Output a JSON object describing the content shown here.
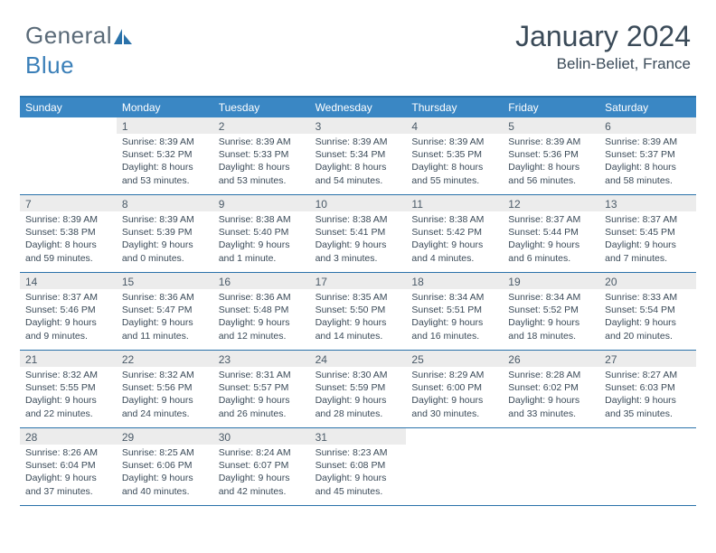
{
  "brand": {
    "part1": "General",
    "part2": "Blue"
  },
  "header": {
    "title": "January 2024",
    "location": "Belin-Beliet, France"
  },
  "colors": {
    "header_bar": "#3a87c4",
    "border": "#2a72aa",
    "daynum_bg": "#ececec",
    "text": "#3a4a58",
    "logo_gray": "#5a6a78",
    "logo_blue": "#3a7fb8",
    "page_bg": "#ffffff"
  },
  "dayLabels": [
    "Sunday",
    "Monday",
    "Tuesday",
    "Wednesday",
    "Thursday",
    "Friday",
    "Saturday"
  ],
  "cells": [
    {
      "day": "",
      "sunrise": "",
      "sunset": "",
      "daylight1": "",
      "daylight2": "",
      "empty": true
    },
    {
      "day": "1",
      "sunrise": "Sunrise: 8:39 AM",
      "sunset": "Sunset: 5:32 PM",
      "daylight1": "Daylight: 8 hours",
      "daylight2": "and 53 minutes."
    },
    {
      "day": "2",
      "sunrise": "Sunrise: 8:39 AM",
      "sunset": "Sunset: 5:33 PM",
      "daylight1": "Daylight: 8 hours",
      "daylight2": "and 53 minutes."
    },
    {
      "day": "3",
      "sunrise": "Sunrise: 8:39 AM",
      "sunset": "Sunset: 5:34 PM",
      "daylight1": "Daylight: 8 hours",
      "daylight2": "and 54 minutes."
    },
    {
      "day": "4",
      "sunrise": "Sunrise: 8:39 AM",
      "sunset": "Sunset: 5:35 PM",
      "daylight1": "Daylight: 8 hours",
      "daylight2": "and 55 minutes."
    },
    {
      "day": "5",
      "sunrise": "Sunrise: 8:39 AM",
      "sunset": "Sunset: 5:36 PM",
      "daylight1": "Daylight: 8 hours",
      "daylight2": "and 56 minutes."
    },
    {
      "day": "6",
      "sunrise": "Sunrise: 8:39 AM",
      "sunset": "Sunset: 5:37 PM",
      "daylight1": "Daylight: 8 hours",
      "daylight2": "and 58 minutes."
    },
    {
      "day": "7",
      "sunrise": "Sunrise: 8:39 AM",
      "sunset": "Sunset: 5:38 PM",
      "daylight1": "Daylight: 8 hours",
      "daylight2": "and 59 minutes."
    },
    {
      "day": "8",
      "sunrise": "Sunrise: 8:39 AM",
      "sunset": "Sunset: 5:39 PM",
      "daylight1": "Daylight: 9 hours",
      "daylight2": "and 0 minutes."
    },
    {
      "day": "9",
      "sunrise": "Sunrise: 8:38 AM",
      "sunset": "Sunset: 5:40 PM",
      "daylight1": "Daylight: 9 hours",
      "daylight2": "and 1 minute."
    },
    {
      "day": "10",
      "sunrise": "Sunrise: 8:38 AM",
      "sunset": "Sunset: 5:41 PM",
      "daylight1": "Daylight: 9 hours",
      "daylight2": "and 3 minutes."
    },
    {
      "day": "11",
      "sunrise": "Sunrise: 8:38 AM",
      "sunset": "Sunset: 5:42 PM",
      "daylight1": "Daylight: 9 hours",
      "daylight2": "and 4 minutes."
    },
    {
      "day": "12",
      "sunrise": "Sunrise: 8:37 AM",
      "sunset": "Sunset: 5:44 PM",
      "daylight1": "Daylight: 9 hours",
      "daylight2": "and 6 minutes."
    },
    {
      "day": "13",
      "sunrise": "Sunrise: 8:37 AM",
      "sunset": "Sunset: 5:45 PM",
      "daylight1": "Daylight: 9 hours",
      "daylight2": "and 7 minutes."
    },
    {
      "day": "14",
      "sunrise": "Sunrise: 8:37 AM",
      "sunset": "Sunset: 5:46 PM",
      "daylight1": "Daylight: 9 hours",
      "daylight2": "and 9 minutes."
    },
    {
      "day": "15",
      "sunrise": "Sunrise: 8:36 AM",
      "sunset": "Sunset: 5:47 PM",
      "daylight1": "Daylight: 9 hours",
      "daylight2": "and 11 minutes."
    },
    {
      "day": "16",
      "sunrise": "Sunrise: 8:36 AM",
      "sunset": "Sunset: 5:48 PM",
      "daylight1": "Daylight: 9 hours",
      "daylight2": "and 12 minutes."
    },
    {
      "day": "17",
      "sunrise": "Sunrise: 8:35 AM",
      "sunset": "Sunset: 5:50 PM",
      "daylight1": "Daylight: 9 hours",
      "daylight2": "and 14 minutes."
    },
    {
      "day": "18",
      "sunrise": "Sunrise: 8:34 AM",
      "sunset": "Sunset: 5:51 PM",
      "daylight1": "Daylight: 9 hours",
      "daylight2": "and 16 minutes."
    },
    {
      "day": "19",
      "sunrise": "Sunrise: 8:34 AM",
      "sunset": "Sunset: 5:52 PM",
      "daylight1": "Daylight: 9 hours",
      "daylight2": "and 18 minutes."
    },
    {
      "day": "20",
      "sunrise": "Sunrise: 8:33 AM",
      "sunset": "Sunset: 5:54 PM",
      "daylight1": "Daylight: 9 hours",
      "daylight2": "and 20 minutes."
    },
    {
      "day": "21",
      "sunrise": "Sunrise: 8:32 AM",
      "sunset": "Sunset: 5:55 PM",
      "daylight1": "Daylight: 9 hours",
      "daylight2": "and 22 minutes."
    },
    {
      "day": "22",
      "sunrise": "Sunrise: 8:32 AM",
      "sunset": "Sunset: 5:56 PM",
      "daylight1": "Daylight: 9 hours",
      "daylight2": "and 24 minutes."
    },
    {
      "day": "23",
      "sunrise": "Sunrise: 8:31 AM",
      "sunset": "Sunset: 5:57 PM",
      "daylight1": "Daylight: 9 hours",
      "daylight2": "and 26 minutes."
    },
    {
      "day": "24",
      "sunrise": "Sunrise: 8:30 AM",
      "sunset": "Sunset: 5:59 PM",
      "daylight1": "Daylight: 9 hours",
      "daylight2": "and 28 minutes."
    },
    {
      "day": "25",
      "sunrise": "Sunrise: 8:29 AM",
      "sunset": "Sunset: 6:00 PM",
      "daylight1": "Daylight: 9 hours",
      "daylight2": "and 30 minutes."
    },
    {
      "day": "26",
      "sunrise": "Sunrise: 8:28 AM",
      "sunset": "Sunset: 6:02 PM",
      "daylight1": "Daylight: 9 hours",
      "daylight2": "and 33 minutes."
    },
    {
      "day": "27",
      "sunrise": "Sunrise: 8:27 AM",
      "sunset": "Sunset: 6:03 PM",
      "daylight1": "Daylight: 9 hours",
      "daylight2": "and 35 minutes."
    },
    {
      "day": "28",
      "sunrise": "Sunrise: 8:26 AM",
      "sunset": "Sunset: 6:04 PM",
      "daylight1": "Daylight: 9 hours",
      "daylight2": "and 37 minutes."
    },
    {
      "day": "29",
      "sunrise": "Sunrise: 8:25 AM",
      "sunset": "Sunset: 6:06 PM",
      "daylight1": "Daylight: 9 hours",
      "daylight2": "and 40 minutes."
    },
    {
      "day": "30",
      "sunrise": "Sunrise: 8:24 AM",
      "sunset": "Sunset: 6:07 PM",
      "daylight1": "Daylight: 9 hours",
      "daylight2": "and 42 minutes."
    },
    {
      "day": "31",
      "sunrise": "Sunrise: 8:23 AM",
      "sunset": "Sunset: 6:08 PM",
      "daylight1": "Daylight: 9 hours",
      "daylight2": "and 45 minutes."
    },
    {
      "day": "",
      "sunrise": "",
      "sunset": "",
      "daylight1": "",
      "daylight2": "",
      "empty": true
    },
    {
      "day": "",
      "sunrise": "",
      "sunset": "",
      "daylight1": "",
      "daylight2": "",
      "empty": true
    },
    {
      "day": "",
      "sunrise": "",
      "sunset": "",
      "daylight1": "",
      "daylight2": "",
      "empty": true
    }
  ]
}
